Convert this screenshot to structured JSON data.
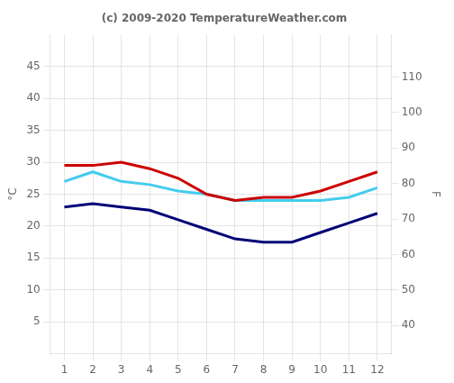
{
  "chart_data": {
    "type": "line",
    "title": "(c) 2009-2020 TemperatureWeather.com",
    "ylabel": "°C",
    "y2label": "F",
    "x": [
      1,
      2,
      3,
      4,
      5,
      6,
      7,
      8,
      9,
      10,
      11,
      12
    ],
    "series": [
      {
        "color": "#cc0000",
        "values": [
          29.5,
          29.5,
          30.0,
          29.0,
          27.5,
          25.0,
          24.0,
          24.5,
          24.5,
          25.5,
          27.0,
          28.5
        ]
      },
      {
        "color": "#44ccee",
        "values": [
          27.0,
          28.5,
          27.0,
          26.5,
          25.5,
          25.0,
          24.0,
          24.0,
          24.0,
          24.0,
          24.5,
          26.0
        ]
      },
      {
        "color": "#000077",
        "values": [
          23.0,
          23.5,
          23.0,
          22.5,
          21.0,
          19.5,
          18.0,
          17.5,
          17.5,
          19.0,
          20.5,
          22.0
        ]
      }
    ],
    "xlim": [
      0.5,
      12.5
    ],
    "xticks": [
      1,
      2,
      3,
      4,
      5,
      6,
      7,
      8,
      9,
      10,
      11,
      12
    ],
    "ylim": [
      0,
      50
    ],
    "yticks": [
      5,
      10,
      15,
      20,
      25,
      30,
      35,
      40,
      45
    ],
    "y2lim": [
      32,
      122
    ],
    "y2ticks": [
      40,
      50,
      60,
      70,
      80,
      90,
      100,
      110
    ],
    "grid": true
  }
}
